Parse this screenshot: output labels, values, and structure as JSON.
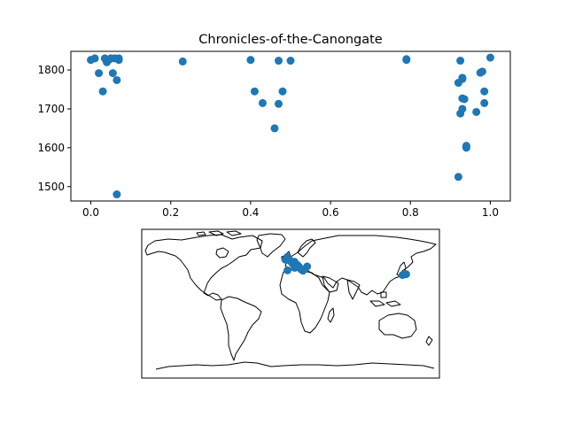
{
  "chart_data": [
    {
      "type": "scatter",
      "title": "Chronicles-of-the-Canongate",
      "xlabel": "",
      "ylabel": "",
      "xlim": [
        -0.05,
        1.05
      ],
      "ylim": [
        1463,
        1848
      ],
      "xticks": [
        0.0,
        0.2,
        0.4,
        0.6,
        0.8,
        1.0
      ],
      "xtick_labels": [
        "0.0",
        "0.2",
        "0.4",
        "0.6",
        "0.8",
        "1.0"
      ],
      "yticks": [
        1500,
        1600,
        1700,
        1800
      ],
      "ytick_labels": [
        "1500",
        "1600",
        "1700",
        "1800"
      ],
      "grid": false,
      "marker_color": "#1f77b4",
      "points": [
        {
          "x": 0.0,
          "y": 1826
        },
        {
          "x": 0.01,
          "y": 1830
        },
        {
          "x": 0.02,
          "y": 1792
        },
        {
          "x": 0.03,
          "y": 1745
        },
        {
          "x": 0.035,
          "y": 1830
        },
        {
          "x": 0.04,
          "y": 1820
        },
        {
          "x": 0.045,
          "y": 1826
        },
        {
          "x": 0.05,
          "y": 1830
        },
        {
          "x": 0.055,
          "y": 1792
        },
        {
          "x": 0.06,
          "y": 1830
        },
        {
          "x": 0.065,
          "y": 1774
        },
        {
          "x": 0.065,
          "y": 1480
        },
        {
          "x": 0.07,
          "y": 1826
        },
        {
          "x": 0.07,
          "y": 1830
        },
        {
          "x": 0.23,
          "y": 1822
        },
        {
          "x": 0.4,
          "y": 1826
        },
        {
          "x": 0.41,
          "y": 1745
        },
        {
          "x": 0.43,
          "y": 1715
        },
        {
          "x": 0.46,
          "y": 1650
        },
        {
          "x": 0.47,
          "y": 1713
        },
        {
          "x": 0.47,
          "y": 1824
        },
        {
          "x": 0.48,
          "y": 1745
        },
        {
          "x": 0.5,
          "y": 1824
        },
        {
          "x": 0.79,
          "y": 1826
        },
        {
          "x": 0.79,
          "y": 1828
        },
        {
          "x": 0.92,
          "y": 1525
        },
        {
          "x": 0.92,
          "y": 1767
        },
        {
          "x": 0.925,
          "y": 1824
        },
        {
          "x": 0.925,
          "y": 1688
        },
        {
          "x": 0.93,
          "y": 1777
        },
        {
          "x": 0.93,
          "y": 1780
        },
        {
          "x": 0.93,
          "y": 1700
        },
        {
          "x": 0.93,
          "y": 1727
        },
        {
          "x": 0.935,
          "y": 1725
        },
        {
          "x": 0.94,
          "y": 1600
        },
        {
          "x": 0.94,
          "y": 1605
        },
        {
          "x": 0.965,
          "y": 1692
        },
        {
          "x": 0.975,
          "y": 1793
        },
        {
          "x": 0.98,
          "y": 1796
        },
        {
          "x": 0.985,
          "y": 1745
        },
        {
          "x": 0.985,
          "y": 1715
        },
        {
          "x": 1.0,
          "y": 1832
        }
      ]
    },
    {
      "type": "map",
      "projection": "plate-carree",
      "lon_range": [
        -180,
        180
      ],
      "lat_range": [
        -90,
        90
      ],
      "marker_color": "#1f77b4",
      "locations": [
        {
          "lon": -3.2,
          "lat": 55.9
        },
        {
          "lon": -2.0,
          "lat": 53.5
        },
        {
          "lon": -4.0,
          "lat": 56.5
        },
        {
          "lon": 0.0,
          "lat": 51.5
        },
        {
          "lon": 2.3,
          "lat": 48.8
        },
        {
          "lon": -1.5,
          "lat": 52.5
        },
        {
          "lon": 4.5,
          "lat": 50.8
        },
        {
          "lon": -6.3,
          "lat": 53.3
        },
        {
          "lon": 12.5,
          "lat": 41.9
        },
        {
          "lon": 10.0,
          "lat": 45.0
        },
        {
          "lon": 15.0,
          "lat": 40.0
        },
        {
          "lon": -3.7,
          "lat": 40.4
        },
        {
          "lon": 8.0,
          "lat": 47.0
        },
        {
          "lon": 20.0,
          "lat": 45.0
        },
        {
          "lon": 5.0,
          "lat": 43.5
        },
        {
          "lon": 139.7,
          "lat": 35.7
        },
        {
          "lon": 135.5,
          "lat": 34.7
        }
      ]
    }
  ]
}
